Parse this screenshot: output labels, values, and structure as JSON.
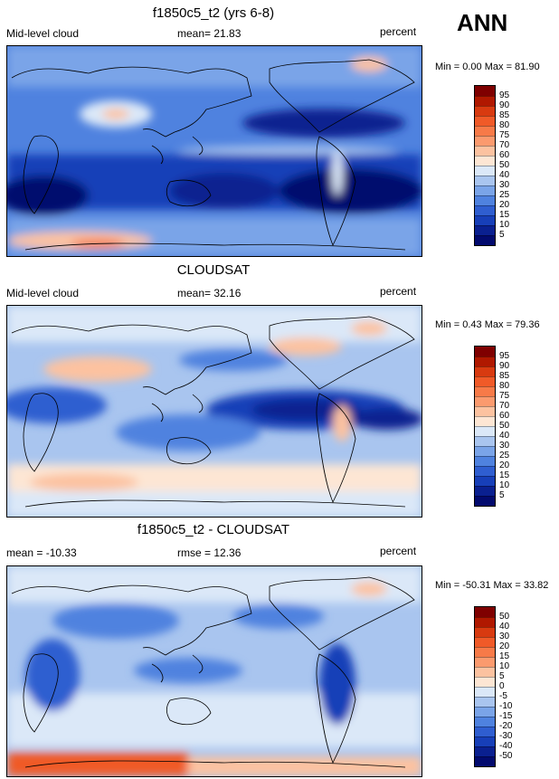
{
  "season": "ANN",
  "panels": [
    {
      "title": "f1850c5_t2 (yrs 6-8)",
      "left_label": "Mid-level cloud",
      "mid_label": "mean=  21.83",
      "right_label": "percent",
      "minmax": "Min =   0.00 Max =  81.90",
      "colorbar": {
        "labels": [
          "95",
          "90",
          "85",
          "80",
          "75",
          "70",
          "60",
          "50",
          "40",
          "30",
          "25",
          "20",
          "15",
          "10",
          "5"
        ],
        "colors": [
          "#7f0000",
          "#b01800",
          "#d83a10",
          "#f05a28",
          "#f77a48",
          "#fb9a6e",
          "#fcc2a0",
          "#fde6d4",
          "#dbe8f8",
          "#a9c5ef",
          "#7aa4e8",
          "#4f82df",
          "#2f5ed0",
          "#173fb8",
          "#0a2090",
          "#020a6e"
        ]
      }
    },
    {
      "title": "CLOUDSAT",
      "left_label": "Mid-level cloud",
      "mid_label": "mean=  32.16",
      "right_label": "percent",
      "minmax": "Min =   0.43 Max =  79.36",
      "colorbar": {
        "labels": [
          "95",
          "90",
          "85",
          "80",
          "75",
          "70",
          "60",
          "50",
          "40",
          "30",
          "25",
          "20",
          "15",
          "10",
          "5"
        ],
        "colors": [
          "#7f0000",
          "#b01800",
          "#d83a10",
          "#f05a28",
          "#f77a48",
          "#fb9a6e",
          "#fcc2a0",
          "#fde6d4",
          "#dbe8f8",
          "#a9c5ef",
          "#7aa4e8",
          "#4f82df",
          "#2f5ed0",
          "#173fb8",
          "#0a2090",
          "#020a6e"
        ]
      }
    },
    {
      "title": "f1850c5_t2 - CLOUDSAT",
      "left_label": "mean = -10.33",
      "mid_label": "rmse =  12.36",
      "right_label": "percent",
      "minmax": "Min = -50.31 Max =  33.82",
      "colorbar": {
        "labels": [
          "50",
          "40",
          "30",
          "20",
          "15",
          "10",
          "5",
          "0",
          "-5",
          "-10",
          "-15",
          "-20",
          "-30",
          "-40",
          "-50"
        ],
        "colors": [
          "#7f0000",
          "#b01800",
          "#d83a10",
          "#f05a28",
          "#f77a48",
          "#fb9a6e",
          "#fcc2a0",
          "#fde6d4",
          "#dbe8f8",
          "#a9c5ef",
          "#7aa4e8",
          "#4f82df",
          "#2f5ed0",
          "#173fb8",
          "#0a2090",
          "#020a6e"
        ]
      }
    }
  ]
}
